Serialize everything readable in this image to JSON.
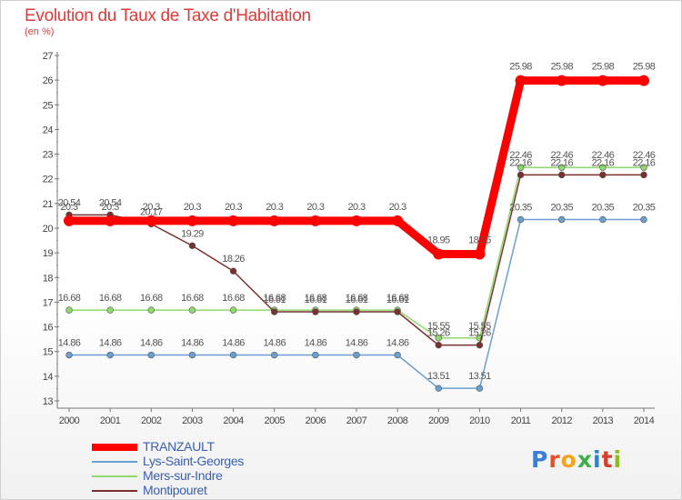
{
  "title": "Evolution du Taux de Taxe d'Habitation",
  "subtitle": "(en %)",
  "logo": {
    "text": "Proxiti",
    "colors": [
      "#3a7fd6",
      "#e8502a",
      "#f2a51a",
      "#3fae49",
      "#2f82d0",
      "#d6402d",
      "#8cbd1a"
    ]
  },
  "chart_data": {
    "type": "line",
    "title": "Evolution du Taux de Taxe d'Habitation",
    "ylabel": "(en %)",
    "xlabel": "",
    "ylim": [
      13,
      27
    ],
    "yticks": [
      "13",
      "14",
      "15",
      "16",
      "17",
      "18",
      "19",
      "20",
      "21",
      "22",
      "23",
      "24",
      "25",
      "26",
      "27"
    ],
    "categories": [
      "2000",
      "2001",
      "2002",
      "2003",
      "2004",
      "2005",
      "2006",
      "2007",
      "2008",
      "2009",
      "2010",
      "2011",
      "2012",
      "2013",
      "2014"
    ],
    "series": [
      {
        "name": "TRANZAULT",
        "color": "#ff0000",
        "width": 9,
        "values": [
          20.3,
          20.3,
          20.3,
          20.3,
          20.3,
          20.3,
          20.3,
          20.3,
          20.3,
          18.95,
          18.95,
          25.98,
          25.98,
          25.98,
          25.98
        ],
        "labels": [
          "20.3",
          "20.3",
          "20.3",
          "20.3",
          "20.3",
          "20.3",
          "20.3",
          "20.3",
          "20.3",
          "18.95",
          "18.95",
          "25.98",
          "25.98",
          "25.98",
          "25.98"
        ]
      },
      {
        "name": "Lys-Saint-Georges",
        "color": "#6a9fd2",
        "width": 1.5,
        "values": [
          14.86,
          14.86,
          14.86,
          14.86,
          14.86,
          14.86,
          14.86,
          14.86,
          14.86,
          13.51,
          13.51,
          20.35,
          20.35,
          20.35,
          20.35
        ],
        "labels": [
          "14.86",
          "14.86",
          "14.86",
          "14.86",
          "14.86",
          "14.86",
          "14.86",
          "14.86",
          "14.86",
          "13.51",
          "13.51",
          "20.35",
          "20.35",
          "20.35",
          "20.35"
        ]
      },
      {
        "name": "Mers-sur-Indre",
        "color": "#8fd96f",
        "width": 1.5,
        "values": [
          16.68,
          16.68,
          16.68,
          16.68,
          16.68,
          16.68,
          16.68,
          16.68,
          16.68,
          15.55,
          15.55,
          22.46,
          22.46,
          22.46,
          22.46
        ],
        "labels": [
          "16.68",
          "16.68",
          "16.68",
          "16.68",
          "16.68",
          "16.68",
          "16.68",
          "16.68",
          "16.68",
          "15.55",
          "15.55",
          "22.46",
          "22.46",
          "22.46",
          "22.46"
        ]
      },
      {
        "name": "Montipouret",
        "color": "#7a3030",
        "width": 1.5,
        "values": [
          20.54,
          20.54,
          20.17,
          19.29,
          18.26,
          16.61,
          16.61,
          16.61,
          16.61,
          15.26,
          15.26,
          22.16,
          22.16,
          22.16,
          22.16
        ],
        "labels": [
          "20.54",
          "20.54",
          "20.17",
          "19.29",
          "18.26",
          "16.61",
          "16.61",
          "16.61",
          "16.61",
          "15.26",
          "15.26",
          "22.16",
          "22.16",
          "22.16",
          "22.16"
        ]
      }
    ],
    "legend_position": "bottom-left",
    "grid": false
  }
}
